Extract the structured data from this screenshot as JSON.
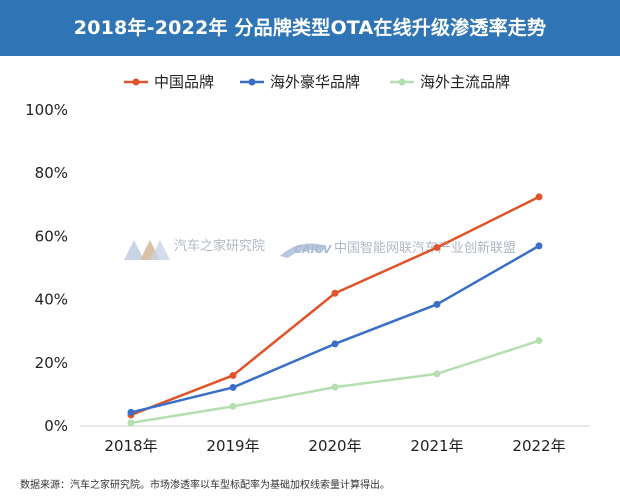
{
  "header": {
    "title": "2018年-2022年 分品牌类型OTA在线升级渗透率走势"
  },
  "footer": {
    "source": "数据来源：汽车之家研究院。市场渗透率以车型标配率为基础加权线索量计算得出。"
  },
  "watermarks": {
    "autohome": "汽车之家研究院",
    "alliance": "中国智能网联汽车产业创新联盟"
  },
  "chart_data": {
    "type": "line",
    "title": "2018年-2022年 分品牌类型OTA在线升级渗透率走势",
    "categories": [
      "2018年",
      "2019年",
      "2020年",
      "2021年",
      "2022年"
    ],
    "series": [
      {
        "name": "中国品牌",
        "color": "#e0542a",
        "values": [
          3.5,
          16,
          42,
          56.5,
          72.5
        ]
      },
      {
        "name": "海外豪华品牌",
        "color": "#3a6fc7",
        "values": [
          4.3,
          12.2,
          26,
          38.5,
          57
        ]
      },
      {
        "name": "海外主流品牌",
        "color": "#b5dfb0",
        "values": [
          1,
          6.2,
          12.3,
          16.5,
          27
        ]
      }
    ],
    "y_ticks": [
      "0%",
      "20%",
      "40%",
      "60%",
      "80%",
      "100%"
    ],
    "ylim": [
      0,
      100
    ],
    "xlabel": "",
    "ylabel": "",
    "grid": false,
    "legend_position": "top-center"
  }
}
